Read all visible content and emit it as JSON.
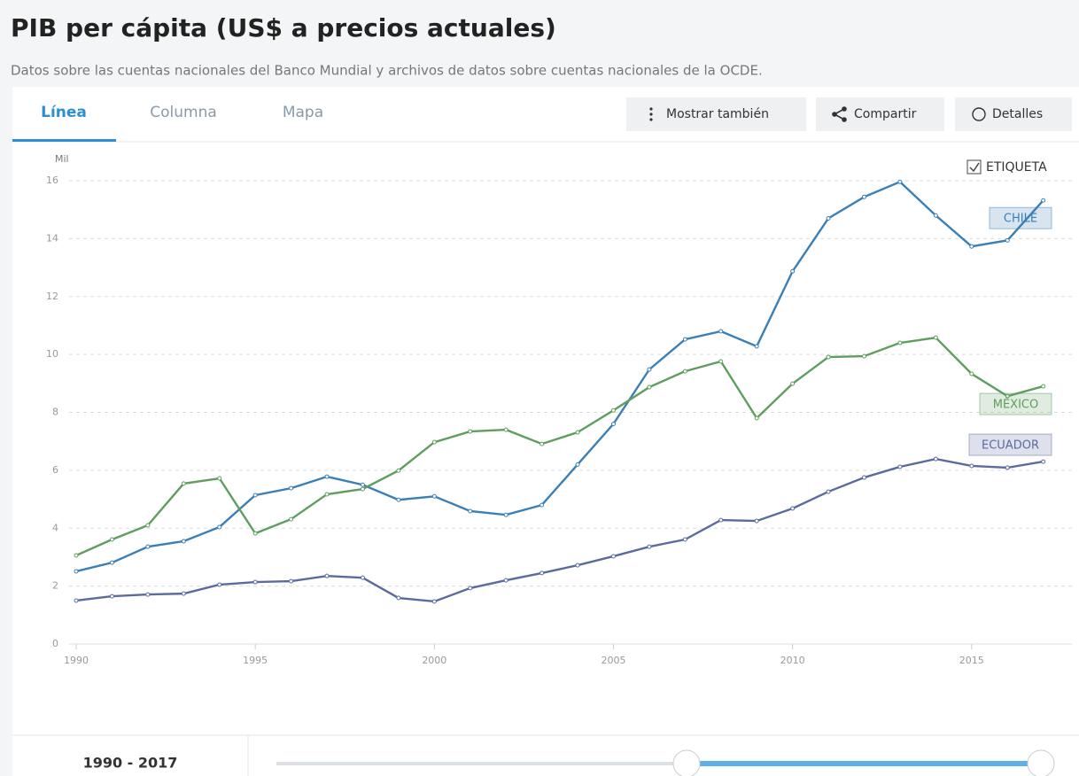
{
  "header": {
    "title": "PIB per cápita (US$ a precios actuales)",
    "subtitle": "Datos sobre las cuentas nacionales del Banco Mundial y archivos de datos sobre cuentas nacionales de la OCDE."
  },
  "tabs": [
    "Línea",
    "Columna",
    "Mapa"
  ],
  "buttons": [
    "Mostrar también",
    "Compartir",
    "Detalles"
  ],
  "label_toggle": "ETIQUETA",
  "chart_data": {
    "type": "line",
    "y_label": "Mil",
    "x": [
      1990,
      1991,
      1992,
      1993,
      1994,
      1995,
      1996,
      1997,
      1998,
      1999,
      2000,
      2001,
      2002,
      2003,
      2004,
      2005,
      2006,
      2007,
      2008,
      2009,
      2010,
      2011,
      2012,
      2013,
      2014,
      2015,
      2016,
      2017
    ],
    "series": [
      {
        "name": "CHILE",
        "color": "#3a7fb5",
        "values": [
          2.51,
          2.81,
          3.36,
          3.55,
          4.04,
          5.14,
          5.38,
          5.78,
          5.5,
          4.98,
          5.1,
          4.59,
          4.46,
          4.8,
          6.2,
          7.6,
          9.48,
          10.52,
          10.8,
          10.28,
          12.87,
          14.7,
          15.44,
          15.96,
          14.8,
          13.73,
          13.94,
          15.32
        ]
      },
      {
        "name": "MÉXICO",
        "color": "#5f9e5f",
        "values": [
          3.06,
          3.61,
          4.1,
          5.54,
          5.72,
          3.82,
          4.31,
          5.17,
          5.35,
          5.99,
          6.97,
          7.34,
          7.4,
          6.91,
          7.31,
          8.07,
          8.87,
          9.42,
          9.76,
          7.8,
          8.99,
          9.91,
          9.94,
          10.4,
          10.58,
          9.33,
          8.56,
          8.9
        ]
      },
      {
        "name": "ECUADOR",
        "color": "#5b6b9e",
        "values": [
          1.5,
          1.65,
          1.71,
          1.74,
          2.05,
          2.14,
          2.17,
          2.35,
          2.29,
          1.59,
          1.47,
          1.93,
          2.2,
          2.45,
          2.72,
          3.03,
          3.36,
          3.61,
          4.28,
          4.25,
          4.68,
          5.26,
          5.75,
          6.12,
          6.39,
          6.15,
          6.09,
          6.3
        ]
      }
    ],
    "xlim": [
      1990,
      2017.8
    ],
    "xticks": [
      1990,
      1995,
      2000,
      2005,
      2010,
      2015
    ],
    "ylim": [
      0,
      16
    ],
    "yticks": [
      0,
      2,
      4,
      6,
      8,
      10,
      12,
      14,
      16
    ],
    "grid": true
  },
  "range": {
    "label": "1990 - 2017"
  }
}
